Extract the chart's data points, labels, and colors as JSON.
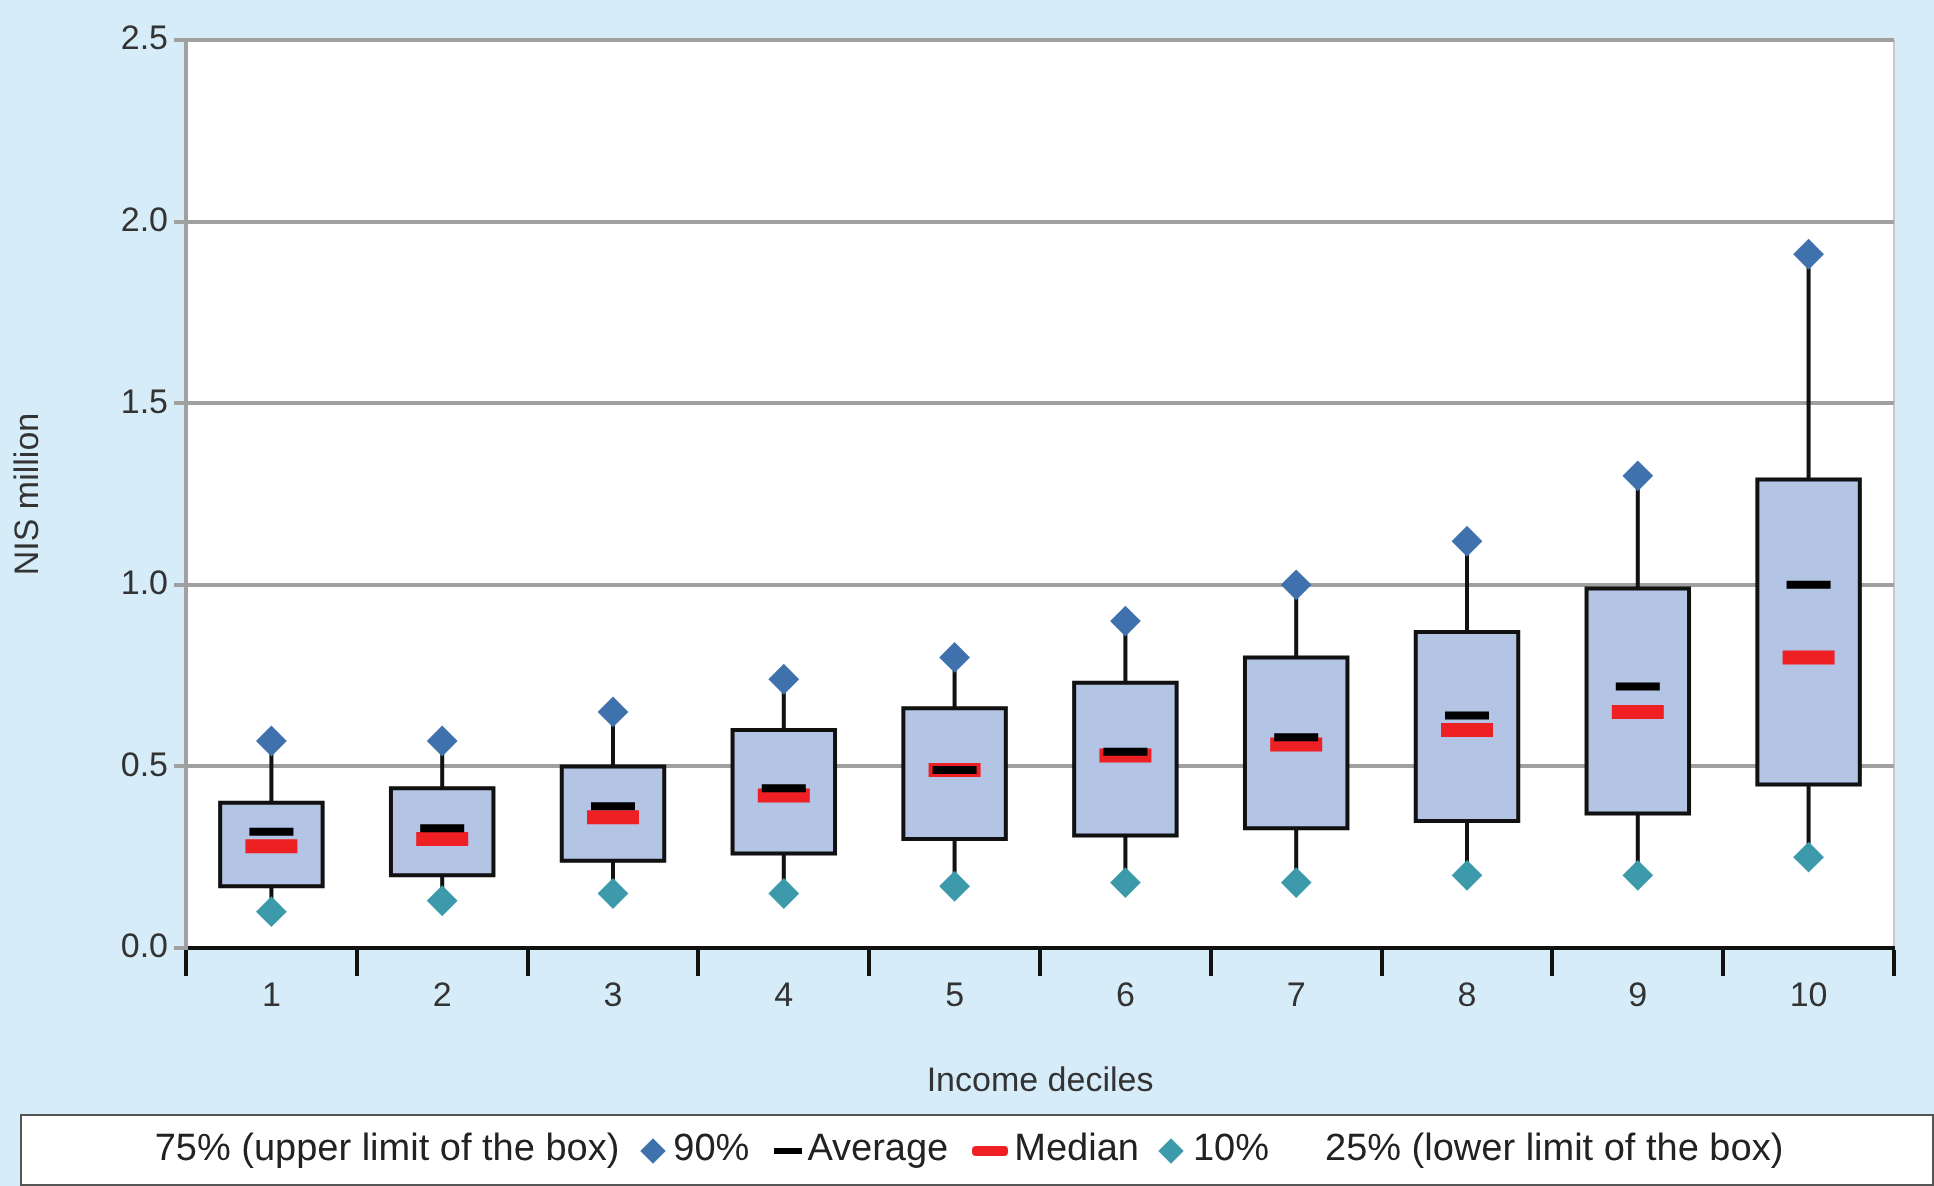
{
  "chart_data": {
    "type": "box",
    "xlabel": "Income deciles",
    "ylabel": "NIS million",
    "categories": [
      "1",
      "2",
      "3",
      "4",
      "5",
      "6",
      "7",
      "8",
      "9",
      "10"
    ],
    "series": [
      {
        "color": "#b3c4e4",
        "boxes": [
          {
            "low": 0.1,
            "q1": 0.17,
            "median": 0.28,
            "q3": 0.4,
            "high": 0.57,
            "mean": 0.32
          },
          {
            "low": 0.13,
            "q1": 0.2,
            "median": 0.3,
            "q3": 0.44,
            "high": 0.57,
            "mean": 0.33
          },
          {
            "low": 0.15,
            "q1": 0.24,
            "median": 0.36,
            "q3": 0.5,
            "high": 0.65,
            "mean": 0.39
          },
          {
            "low": 0.15,
            "q1": 0.26,
            "median": 0.42,
            "q3": 0.6,
            "high": 0.74,
            "mean": 0.44
          },
          {
            "low": 0.17,
            "q1": 0.3,
            "median": 0.49,
            "q3": 0.66,
            "high": 0.8,
            "mean": 0.49
          },
          {
            "low": 0.18,
            "q1": 0.31,
            "median": 0.53,
            "q3": 0.73,
            "high": 0.9,
            "mean": 0.54
          },
          {
            "low": 0.18,
            "q1": 0.33,
            "median": 0.56,
            "q3": 0.8,
            "high": 1.0,
            "mean": 0.58
          },
          {
            "low": 0.2,
            "q1": 0.35,
            "median": 0.6,
            "q3": 0.87,
            "high": 1.12,
            "mean": 0.64
          },
          {
            "low": 0.2,
            "q1": 0.37,
            "median": 0.65,
            "q3": 0.99,
            "high": 1.3,
            "mean": 0.72
          },
          {
            "low": 0.25,
            "q1": 0.45,
            "median": 0.8,
            "q3": 1.29,
            "high": 1.91,
            "mean": 1.0
          }
        ]
      },
      {
        "name": "90%",
        "type": "scatter",
        "marker": "diamond",
        "color": "#3f72ad",
        "values": [
          0.57,
          0.57,
          0.65,
          0.74,
          0.8,
          0.9,
          1.0,
          1.12,
          1.3,
          1.91
        ]
      },
      {
        "name": "10%",
        "type": "scatter",
        "marker": "diamond",
        "color": "#3c9aaa",
        "values": [
          0.1,
          0.13,
          0.15,
          0.15,
          0.17,
          0.18,
          0.18,
          0.2,
          0.2,
          0.25
        ]
      }
    ],
    "ylim": [
      0,
      2.5
    ],
    "yticks": [
      {
        "value": 0,
        "label": "0.0"
      },
      0.5,
      {
        "value": 1,
        "label": "1.0"
      },
      1.5,
      {
        "value": 2,
        "label": "2.0"
      },
      2.5
    ],
    "grid": "y",
    "legend": "bottom",
    "annotations": [
      "75% (upper limit of the box)",
      "Average",
      "Median",
      "25% (lower limit of the box)"
    ]
  }
}
